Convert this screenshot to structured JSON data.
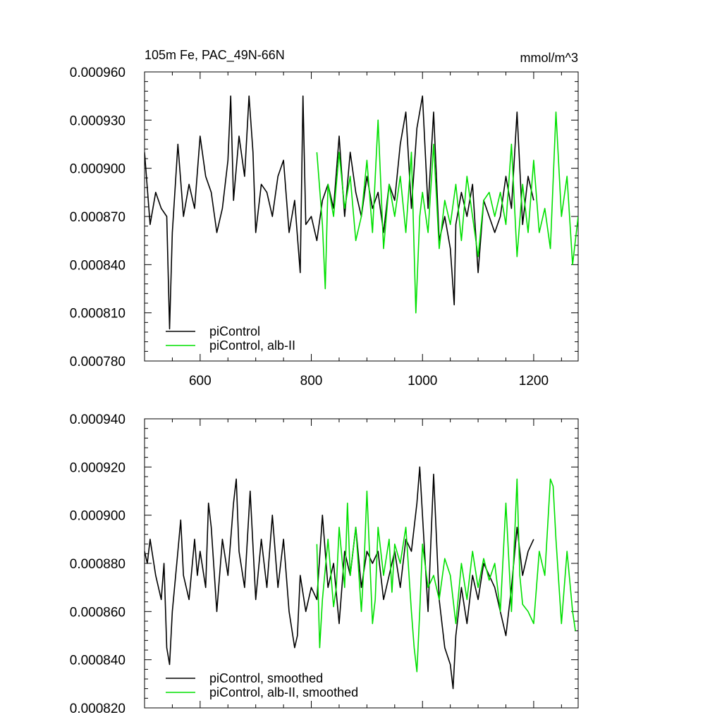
{
  "chart_data": [
    {
      "type": "line",
      "title_left": "105m Fe, PAC_49N-66N",
      "title_right": "mmol/m^3",
      "xlim": [
        500,
        1280
      ],
      "ylim": [
        0.00078,
        0.00096
      ],
      "xticks": [
        600,
        800,
        1000,
        1200
      ],
      "xtick_labels": [
        "600",
        "800",
        "1000",
        "1200"
      ],
      "yticks": [
        0.00078,
        0.00081,
        0.00084,
        0.00087,
        0.0009,
        0.00093,
        0.00096
      ],
      "ytick_labels": [
        "0.000780",
        "0.000810",
        "0.000840",
        "0.000870",
        "0.000900",
        "0.000930",
        "0.000960"
      ],
      "grid": false,
      "legend_position": "bottom-left",
      "series": [
        {
          "name": "piControl",
          "color": "#000000",
          "x": [
            500,
            510,
            520,
            530,
            540,
            545,
            550,
            560,
            570,
            580,
            590,
            600,
            610,
            620,
            630,
            640,
            650,
            655,
            660,
            670,
            680,
            688,
            695,
            700,
            710,
            720,
            730,
            740,
            750,
            760,
            770,
            780,
            785,
            790,
            800,
            810,
            820,
            830,
            840,
            850,
            860,
            870,
            880,
            890,
            900,
            910,
            920,
            930,
            940,
            950,
            960,
            970,
            980,
            990,
            1000,
            1010,
            1020,
            1030,
            1040,
            1050,
            1057,
            1060,
            1070,
            1080,
            1090,
            1100,
            1110,
            1120,
            1130,
            1140,
            1150,
            1160,
            1170,
            1180,
            1190,
            1200
          ],
          "y": [
            0.00091,
            0.000865,
            0.000885,
            0.000875,
            0.00087,
            0.0008,
            0.00086,
            0.000915,
            0.00087,
            0.00089,
            0.000875,
            0.00092,
            0.000895,
            0.000885,
            0.00086,
            0.000875,
            0.000905,
            0.000945,
            0.00088,
            0.00092,
            0.000895,
            0.000945,
            0.00091,
            0.00086,
            0.00089,
            0.000885,
            0.00087,
            0.000895,
            0.000905,
            0.00086,
            0.00088,
            0.000835,
            0.000945,
            0.000865,
            0.00087,
            0.000855,
            0.00088,
            0.00089,
            0.000875,
            0.00092,
            0.00087,
            0.00091,
            0.000885,
            0.00087,
            0.000895,
            0.000875,
            0.000885,
            0.00086,
            0.00089,
            0.00088,
            0.000915,
            0.000935,
            0.000875,
            0.000925,
            0.000945,
            0.000875,
            0.000935,
            0.000855,
            0.00087,
            0.00085,
            0.000815,
            0.000865,
            0.000885,
            0.00087,
            0.00089,
            0.000835,
            0.00088,
            0.00087,
            0.00086,
            0.00087,
            0.000895,
            0.000875,
            0.000935,
            0.000865,
            0.000895,
            0.00088
          ]
        },
        {
          "name": "piControl, alb-II",
          "color": "#00e000",
          "x": [
            810,
            820,
            825,
            830,
            840,
            850,
            860,
            870,
            880,
            890,
            900,
            910,
            920,
            930,
            940,
            950,
            960,
            970,
            980,
            988,
            995,
            1000,
            1010,
            1020,
            1030,
            1040,
            1050,
            1060,
            1070,
            1080,
            1090,
            1100,
            1110,
            1120,
            1130,
            1140,
            1150,
            1160,
            1170,
            1180,
            1190,
            1200,
            1210,
            1220,
            1230,
            1240,
            1250,
            1260,
            1270,
            1280
          ],
          "y": [
            0.00091,
            0.000865,
            0.000825,
            0.00089,
            0.00087,
            0.00091,
            0.000875,
            0.000895,
            0.000855,
            0.00087,
            0.000905,
            0.00086,
            0.00093,
            0.00085,
            0.00089,
            0.00087,
            0.000895,
            0.00086,
            0.00091,
            0.00081,
            0.00087,
            0.000885,
            0.00086,
            0.000915,
            0.00085,
            0.00088,
            0.000865,
            0.00089,
            0.000855,
            0.000895,
            0.00087,
            0.000845,
            0.00088,
            0.000885,
            0.00087,
            0.000885,
            0.000865,
            0.000915,
            0.000845,
            0.00089,
            0.00086,
            0.000905,
            0.00086,
            0.000875,
            0.00085,
            0.000935,
            0.00087,
            0.000895,
            0.00084,
            0.00087
          ]
        }
      ]
    },
    {
      "type": "line",
      "xlim": [
        500,
        1280
      ],
      "ylim": [
        0.00082,
        0.00094
      ],
      "xticks": [
        600,
        800,
        1000,
        1200
      ],
      "yticks": [
        0.00082,
        0.00084,
        0.00086,
        0.00088,
        0.0009,
        0.00092,
        0.00094
      ],
      "ytick_labels": [
        "0.000820",
        "0.000840",
        "0.000860",
        "0.000880",
        "0.000900",
        "0.000920",
        "0.000940"
      ],
      "grid": false,
      "legend_position": "bottom-left",
      "series": [
        {
          "name": "piControl, smoothed",
          "color": "#000000",
          "x": [
            500,
            505,
            510,
            520,
            530,
            535,
            540,
            545,
            550,
            560,
            565,
            570,
            580,
            590,
            595,
            600,
            610,
            615,
            620,
            630,
            640,
            650,
            660,
            665,
            670,
            680,
            690,
            700,
            710,
            720,
            730,
            740,
            750,
            760,
            770,
            775,
            780,
            790,
            800,
            810,
            820,
            830,
            840,
            850,
            860,
            870,
            880,
            890,
            900,
            910,
            920,
            930,
            940,
            950,
            960,
            970,
            980,
            990,
            995,
            1000,
            1010,
            1020,
            1030,
            1040,
            1050,
            1055,
            1060,
            1070,
            1080,
            1090,
            1100,
            1110,
            1120,
            1130,
            1140,
            1150,
            1160,
            1170,
            1180,
            1190,
            1200
          ],
          "y": [
            0.000885,
            0.00088,
            0.00089,
            0.000875,
            0.000865,
            0.00088,
            0.000845,
            0.000838,
            0.00086,
            0.000885,
            0.000898,
            0.000875,
            0.000865,
            0.00089,
            0.000875,
            0.000885,
            0.00087,
            0.000905,
            0.000895,
            0.00086,
            0.00089,
            0.000875,
            0.000905,
            0.000915,
            0.000885,
            0.00087,
            0.00091,
            0.000865,
            0.00089,
            0.00087,
            0.0009,
            0.00087,
            0.00089,
            0.00086,
            0.000845,
            0.00085,
            0.000875,
            0.00086,
            0.00087,
            0.000865,
            0.0009,
            0.00087,
            0.00088,
            0.000855,
            0.000885,
            0.000875,
            0.000895,
            0.00087,
            0.000885,
            0.00088,
            0.000885,
            0.000865,
            0.000875,
            0.000885,
            0.00087,
            0.00089,
            0.000885,
            0.000905,
            0.00092,
            0.0009,
            0.00086,
            0.000917,
            0.000865,
            0.000845,
            0.000838,
            0.000828,
            0.00085,
            0.00087,
            0.000855,
            0.000875,
            0.000865,
            0.00088,
            0.000875,
            0.00087,
            0.00086,
            0.00085,
            0.00087,
            0.000895,
            0.000875,
            0.000885,
            0.00089
          ]
        },
        {
          "name": "piControl, alb-II, smoothed",
          "color": "#00e000",
          "x": [
            810,
            815,
            820,
            830,
            840,
            845,
            850,
            860,
            865,
            870,
            880,
            890,
            895,
            900,
            910,
            915,
            920,
            930,
            940,
            945,
            950,
            960,
            970,
            980,
            985,
            990,
            995,
            1000,
            1010,
            1020,
            1030,
            1040,
            1050,
            1060,
            1070,
            1080,
            1090,
            1100,
            1110,
            1120,
            1130,
            1140,
            1150,
            1160,
            1170,
            1175,
            1180,
            1190,
            1200,
            1210,
            1220,
            1230,
            1235,
            1240,
            1250,
            1260,
            1270,
            1275
          ],
          "y": [
            0.000888,
            0.000845,
            0.000865,
            0.00089,
            0.000862,
            0.00087,
            0.000895,
            0.00087,
            0.000905,
            0.000875,
            0.000895,
            0.00086,
            0.00088,
            0.00091,
            0.000855,
            0.000865,
            0.000895,
            0.000875,
            0.00089,
            0.000868,
            0.000888,
            0.00088,
            0.000895,
            0.00086,
            0.000845,
            0.000835,
            0.00086,
            0.000888,
            0.00087,
            0.000875,
            0.000865,
            0.000882,
            0.000875,
            0.000855,
            0.00088,
            0.000865,
            0.000885,
            0.00087,
            0.000882,
            0.000873,
            0.00088,
            0.00086,
            0.000905,
            0.00086,
            0.000915,
            0.000875,
            0.000863,
            0.00086,
            0.000855,
            0.000885,
            0.000875,
            0.000915,
            0.000912,
            0.00089,
            0.000855,
            0.000885,
            0.00086,
            0.000852
          ]
        }
      ]
    }
  ]
}
